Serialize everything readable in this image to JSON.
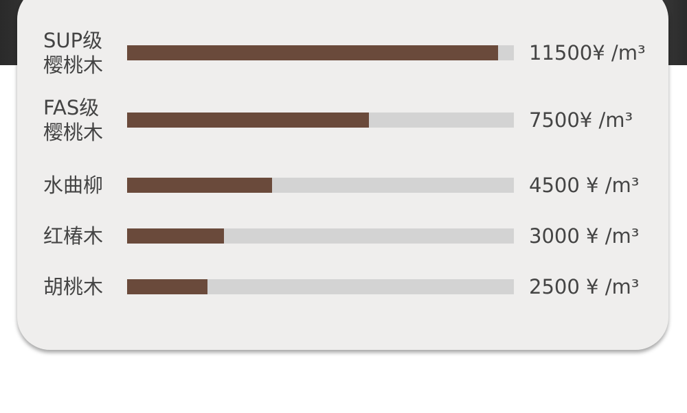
{
  "chart_data": {
    "type": "hbar",
    "categories": [
      "SUP级\n樱桃木",
      "FAS级\n樱桃木",
      "水曲柳",
      "红椿木",
      "胡桃木"
    ],
    "values": [
      11500,
      7500,
      4500,
      3000,
      2500
    ],
    "value_labels": [
      "11500¥ /m³",
      "7500¥ /m³",
      "4500 ¥ /m³",
      "3000 ¥ /m³",
      "2500 ¥ /m³"
    ],
    "color": "#6a4a3b",
    "track_color": "#d3d3d3",
    "xlim": [
      0,
      12000
    ]
  }
}
